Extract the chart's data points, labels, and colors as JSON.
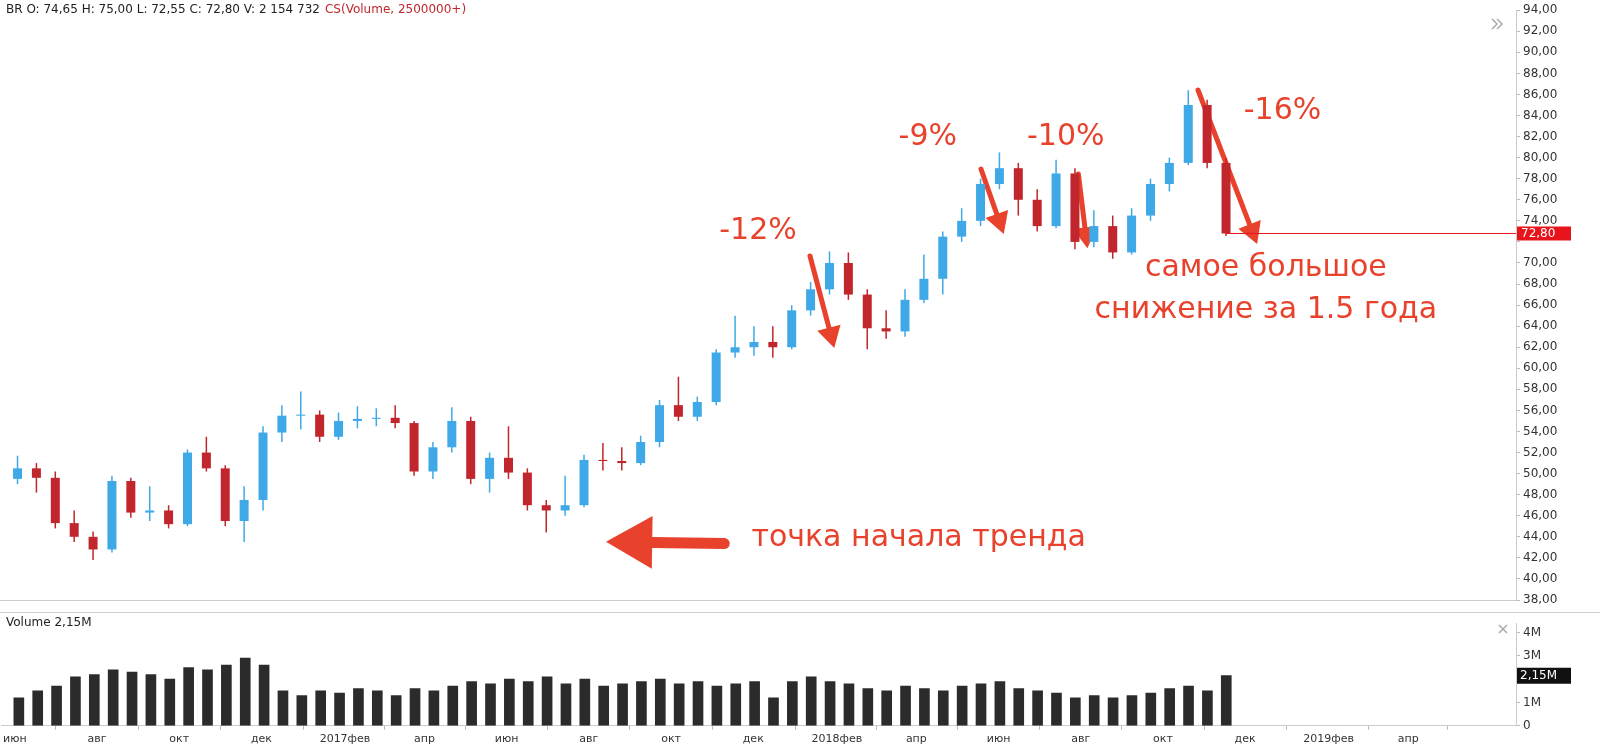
{
  "chart_data": [
    {
      "type": "candlestick",
      "title": "BR O: 74,65 H: 75,00 L: 72,55 C: 72,80 V: 2 154 732",
      "subtitle": "CS(Volume, 2500000+)",
      "x": [
        "2016-06-04",
        "2016-06-18",
        "2016-07-02",
        "2016-07-16",
        "2016-07-30",
        "2016-08-13",
        "2016-08-27",
        "2016-09-10",
        "2016-09-24",
        "2016-10-08",
        "2016-10-22",
        "2016-11-05",
        "2016-11-19",
        "2016-12-03",
        "2016-12-17",
        "2016-12-31",
        "2017-01-14",
        "2017-01-28",
        "2017-02-11",
        "2017-02-25",
        "2017-03-11",
        "2017-03-25",
        "2017-04-08",
        "2017-04-22",
        "2017-05-06",
        "2017-05-20",
        "2017-06-03",
        "2017-06-17",
        "2017-07-01",
        "2017-07-15",
        "2017-07-29",
        "2017-08-12",
        "2017-08-26",
        "2017-09-09",
        "2017-09-23",
        "2017-10-07",
        "2017-10-21",
        "2017-11-04",
        "2017-11-18",
        "2017-12-02",
        "2017-12-16",
        "2017-12-30",
        "2018-01-13",
        "2018-01-27",
        "2018-02-10",
        "2018-02-24",
        "2018-03-10",
        "2018-03-24",
        "2018-04-07",
        "2018-04-21",
        "2018-05-05",
        "2018-05-19",
        "2018-06-02",
        "2018-06-16",
        "2018-06-30",
        "2018-07-14",
        "2018-07-28",
        "2018-08-11",
        "2018-08-25",
        "2018-09-08",
        "2018-09-22",
        "2018-10-06",
        "2018-10-20",
        "2018-11-03",
        "2018-11-17"
      ],
      "ohlc": [
        [
          49.5,
          51.7,
          49.0,
          50.5
        ],
        [
          50.5,
          51.0,
          48.2,
          49.6
        ],
        [
          49.6,
          50.2,
          44.8,
          45.3
        ],
        [
          45.3,
          46.5,
          43.5,
          44.0
        ],
        [
          44.0,
          44.5,
          41.8,
          42.8
        ],
        [
          42.8,
          49.8,
          42.5,
          49.3
        ],
        [
          49.3,
          49.6,
          45.8,
          46.3
        ],
        [
          46.3,
          48.8,
          45.5,
          46.5
        ],
        [
          46.5,
          47.0,
          44.8,
          45.2
        ],
        [
          45.2,
          52.3,
          45.0,
          52.0
        ],
        [
          52.0,
          53.5,
          50.2,
          50.5
        ],
        [
          50.5,
          50.8,
          45.0,
          45.5
        ],
        [
          45.5,
          48.8,
          43.5,
          47.5
        ],
        [
          47.5,
          54.5,
          46.5,
          53.9
        ],
        [
          53.9,
          56.5,
          53.0,
          55.5
        ],
        [
          55.5,
          57.8,
          54.2,
          55.6
        ],
        [
          55.6,
          56.0,
          53.0,
          53.5
        ],
        [
          53.5,
          55.8,
          53.2,
          55.0
        ],
        [
          55.0,
          56.4,
          54.3,
          55.2
        ],
        [
          55.2,
          56.2,
          54.5,
          55.3
        ],
        [
          55.3,
          56.5,
          54.3,
          54.8
        ],
        [
          54.8,
          55.0,
          49.8,
          50.2
        ],
        [
          50.2,
          53.0,
          49.5,
          52.5
        ],
        [
          52.5,
          56.3,
          52.0,
          55.0
        ],
        [
          55.0,
          55.4,
          49.0,
          49.5
        ],
        [
          49.5,
          52.0,
          48.2,
          51.5
        ],
        [
          51.5,
          54.5,
          49.5,
          50.1
        ],
        [
          50.1,
          50.5,
          46.5,
          47.0
        ],
        [
          47.0,
          47.5,
          44.4,
          46.5
        ],
        [
          46.5,
          49.8,
          46.0,
          47.0
        ],
        [
          47.0,
          51.8,
          46.8,
          51.3
        ],
        [
          51.3,
          52.9,
          50.3,
          51.2
        ],
        [
          51.2,
          52.5,
          50.3,
          51.0
        ],
        [
          51.0,
          53.6,
          50.8,
          53.0
        ],
        [
          53.0,
          57.0,
          52.5,
          56.5
        ],
        [
          56.5,
          59.2,
          55.0,
          55.4
        ],
        [
          55.4,
          57.3,
          55.0,
          56.8
        ],
        [
          56.8,
          61.8,
          56.5,
          61.5
        ],
        [
          61.5,
          65.0,
          61.0,
          62.0
        ],
        [
          62.0,
          64.0,
          61.2,
          62.5
        ],
        [
          62.5,
          64.0,
          61.0,
          62.0
        ],
        [
          62.0,
          66.0,
          61.8,
          65.5
        ],
        [
          65.5,
          68.2,
          65.0,
          67.5
        ],
        [
          67.5,
          71.1,
          67.0,
          70.0
        ],
        [
          70.0,
          71.0,
          66.5,
          67.0
        ],
        [
          67.0,
          67.5,
          61.8,
          63.8
        ],
        [
          63.8,
          65.5,
          62.8,
          63.5
        ],
        [
          63.5,
          67.5,
          63.0,
          66.5
        ],
        [
          66.5,
          70.8,
          66.2,
          68.5
        ],
        [
          68.5,
          73.0,
          67.0,
          72.5
        ],
        [
          72.5,
          75.2,
          72.0,
          74.0
        ],
        [
          74.0,
          78.0,
          73.5,
          77.5
        ],
        [
          77.5,
          80.5,
          77.0,
          79.0
        ],
        [
          79.0,
          79.5,
          74.5,
          76.0
        ],
        [
          76.0,
          77.0,
          73.0,
          73.5
        ],
        [
          73.5,
          79.8,
          73.3,
          78.5
        ],
        [
          78.5,
          79.0,
          71.3,
          72.0
        ],
        [
          72.0,
          75.0,
          71.5,
          73.5
        ],
        [
          73.5,
          74.5,
          70.4,
          71.0
        ],
        [
          71.0,
          75.2,
          70.8,
          74.5
        ],
        [
          74.5,
          78.0,
          74.0,
          77.5
        ],
        [
          77.5,
          80.0,
          76.8,
          79.5
        ],
        [
          79.5,
          86.4,
          79.3,
          85.0
        ],
        [
          85.0,
          85.5,
          79.0,
          79.5
        ],
        [
          79.5,
          80.0,
          72.55,
          72.8
        ]
      ],
      "colors": [
        "#3fa9e8",
        "#c0262c",
        "#c0262c",
        "#c0262c",
        "#c0262c",
        "#3fa9e8",
        "#c0262c",
        "#3fa9e8",
        "#c0262c",
        "#3fa9e8",
        "#c0262c",
        "#c0262c",
        "#3fa9e8",
        "#3fa9e8",
        "#3fa9e8",
        "#3fa9e8",
        "#c0262c",
        "#3fa9e8",
        "#3fa9e8",
        "#3fa9e8",
        "#c0262c",
        "#c0262c",
        "#3fa9e8",
        "#3fa9e8",
        "#c0262c",
        "#3fa9e8",
        "#c0262c",
        "#c0262c",
        "#c0262c",
        "#3fa9e8",
        "#3fa9e8",
        "#c0262c",
        "#c0262c",
        "#3fa9e8",
        "#3fa9e8",
        "#c0262c",
        "#3fa9e8",
        "#3fa9e8",
        "#3fa9e8",
        "#3fa9e8",
        "#c0262c",
        "#3fa9e8",
        "#3fa9e8",
        "#3fa9e8",
        "#c0262c",
        "#c0262c",
        "#c0262c",
        "#3fa9e8",
        "#3fa9e8",
        "#3fa9e8",
        "#3fa9e8",
        "#3fa9e8",
        "#3fa9e8",
        "#c0262c",
        "#c0262c",
        "#3fa9e8",
        "#c0262c",
        "#3fa9e8",
        "#c0262c",
        "#3fa9e8",
        "#3fa9e8",
        "#3fa9e8",
        "#3fa9e8",
        "#c0262c",
        "#c0262c"
      ],
      "xlim": [
        "2016-05-22",
        "2019-06-20"
      ],
      "ylim": [
        38,
        94
      ],
      "yticks": [
        {
          "value": 38,
          "label": "38,00"
        },
        {
          "value": 40,
          "label": "40,00"
        },
        {
          "value": 42,
          "label": "42,00"
        },
        {
          "value": 44,
          "label": "44,00"
        },
        {
          "value": 46,
          "label": "46,00"
        },
        {
          "value": 48,
          "label": "48,00"
        },
        {
          "value": 50,
          "label": "50,00"
        },
        {
          "value": 52,
          "label": "52,00"
        },
        {
          "value": 54,
          "label": "54,00"
        },
        {
          "value": 56,
          "label": "56,00"
        },
        {
          "value": 58,
          "label": "58,00"
        },
        {
          "value": 60,
          "label": "60,00"
        },
        {
          "value": 62,
          "label": "62,00"
        },
        {
          "value": 64,
          "label": "64,00"
        },
        {
          "value": 66,
          "label": "66,00"
        },
        {
          "value": 68,
          "label": "68,00"
        },
        {
          "value": 70,
          "label": "70,00"
        },
        {
          "value": 72,
          "label": null
        },
        {
          "value": 74,
          "label": "74,00"
        },
        {
          "value": 76,
          "label": "76,00"
        },
        {
          "value": 78,
          "label": "78,00"
        },
        {
          "value": 80,
          "label": "80,00"
        },
        {
          "value": 82,
          "label": "82,00"
        },
        {
          "value": 84,
          "label": "84,00"
        },
        {
          "value": 86,
          "label": "86,00"
        },
        {
          "value": 88,
          "label": "88,00"
        },
        {
          "value": 90,
          "label": "90,00"
        },
        {
          "value": 92,
          "label": "92,00"
        },
        {
          "value": 94,
          "label": "94,00"
        }
      ],
      "tick_labels": "y",
      "grid": false,
      "legend": false,
      "ref_lines": [
        {
          "axis": "y",
          "value": 72.8,
          "label": "72,80",
          "color": "#e8141c"
        }
      ],
      "annotations": [
        "-12%",
        "-9%",
        "-10%",
        "-16%",
        "самое большое\nснижение за 1.5 года",
        "точка начала тренда"
      ]
    },
    {
      "type": "bar",
      "title": "Volume 2,15M",
      "color": "#2b2b2b",
      "x": [
        "2016-06-04",
        "2016-06-18",
        "2016-07-02",
        "2016-07-16",
        "2016-07-30",
        "2016-08-13",
        "2016-08-27",
        "2016-09-10",
        "2016-09-24",
        "2016-10-08",
        "2016-10-22",
        "2016-11-05",
        "2016-11-19",
        "2016-12-03",
        "2016-12-17",
        "2016-12-31",
        "2017-01-14",
        "2017-01-28",
        "2017-02-11",
        "2017-02-25",
        "2017-03-11",
        "2017-03-25",
        "2017-04-08",
        "2017-04-22",
        "2017-05-06",
        "2017-05-20",
        "2017-06-03",
        "2017-06-17",
        "2017-07-01",
        "2017-07-15",
        "2017-07-29",
        "2017-08-12",
        "2017-08-26",
        "2017-09-09",
        "2017-09-23",
        "2017-10-07",
        "2017-10-21",
        "2017-11-04",
        "2017-11-18",
        "2017-12-02",
        "2017-12-16",
        "2017-12-30",
        "2018-01-13",
        "2018-01-27",
        "2018-02-10",
        "2018-02-24",
        "2018-03-10",
        "2018-03-24",
        "2018-04-07",
        "2018-04-21",
        "2018-05-05",
        "2018-05-19",
        "2018-06-02",
        "2018-06-16",
        "2018-06-30",
        "2018-07-14",
        "2018-07-28",
        "2018-08-11",
        "2018-08-25",
        "2018-09-08",
        "2018-09-22",
        "2018-10-06",
        "2018-10-20",
        "2018-11-03",
        "2018-11-17"
      ],
      "values": [
        1.2,
        1.5,
        1.7,
        2.1,
        2.2,
        2.4,
        2.3,
        2.2,
        2.0,
        2.5,
        2.4,
        2.6,
        2.9,
        2.6,
        1.5,
        1.3,
        1.5,
        1.4,
        1.6,
        1.5,
        1.3,
        1.6,
        1.5,
        1.7,
        1.9,
        1.8,
        2.0,
        1.9,
        2.1,
        1.8,
        2.0,
        1.7,
        1.8,
        1.9,
        2.0,
        1.8,
        1.9,
        1.7,
        1.8,
        1.9,
        1.2,
        1.9,
        2.1,
        1.9,
        1.8,
        1.6,
        1.5,
        1.7,
        1.6,
        1.5,
        1.7,
        1.8,
        1.9,
        1.6,
        1.5,
        1.4,
        1.2,
        1.3,
        1.2,
        1.3,
        1.4,
        1.6,
        1.7,
        1.5,
        2.15
      ],
      "xlim": [
        "2016-05-22",
        "2019-06-20"
      ],
      "xticks": [
        {
          "value": "2016-06-01",
          "label": "июн"
        },
        {
          "value": "2016-08-01",
          "label": "авг"
        },
        {
          "value": "2016-10-01",
          "label": "окт"
        },
        {
          "value": "2016-12-01",
          "label": "дек"
        },
        {
          "value": "2017-02-01",
          "label": "2017фев"
        },
        {
          "value": "2017-04-01",
          "label": "апр"
        },
        {
          "value": "2017-06-01",
          "label": "июн"
        },
        {
          "value": "2017-08-01",
          "label": "авг"
        },
        {
          "value": "2017-10-01",
          "label": "окт"
        },
        {
          "value": "2017-12-01",
          "label": "дек"
        },
        {
          "value": "2018-02-01",
          "label": "2018фев"
        },
        {
          "value": "2018-04-01",
          "label": "апр"
        },
        {
          "value": "2018-06-01",
          "label": "июн"
        },
        {
          "value": "2018-08-01",
          "label": "авг"
        },
        {
          "value": "2018-10-01",
          "label": "окт"
        },
        {
          "value": "2018-12-01",
          "label": "дек"
        },
        {
          "value": "2019-02-01",
          "label": "2019фев"
        },
        {
          "value": "2019-04-01",
          "label": "апр"
        }
      ],
      "ylim": [
        0,
        4.4
      ],
      "yticks": [
        {
          "value": 0,
          "label": "0"
        },
        {
          "value": 1,
          "label": "1M"
        },
        {
          "value": 2,
          "label": null
        },
        {
          "value": 3,
          "label": "3M"
        },
        {
          "value": 4,
          "label": "4M"
        }
      ],
      "grid": false,
      "legend": false,
      "annotations": [
        "2,15M"
      ]
    }
  ]
}
